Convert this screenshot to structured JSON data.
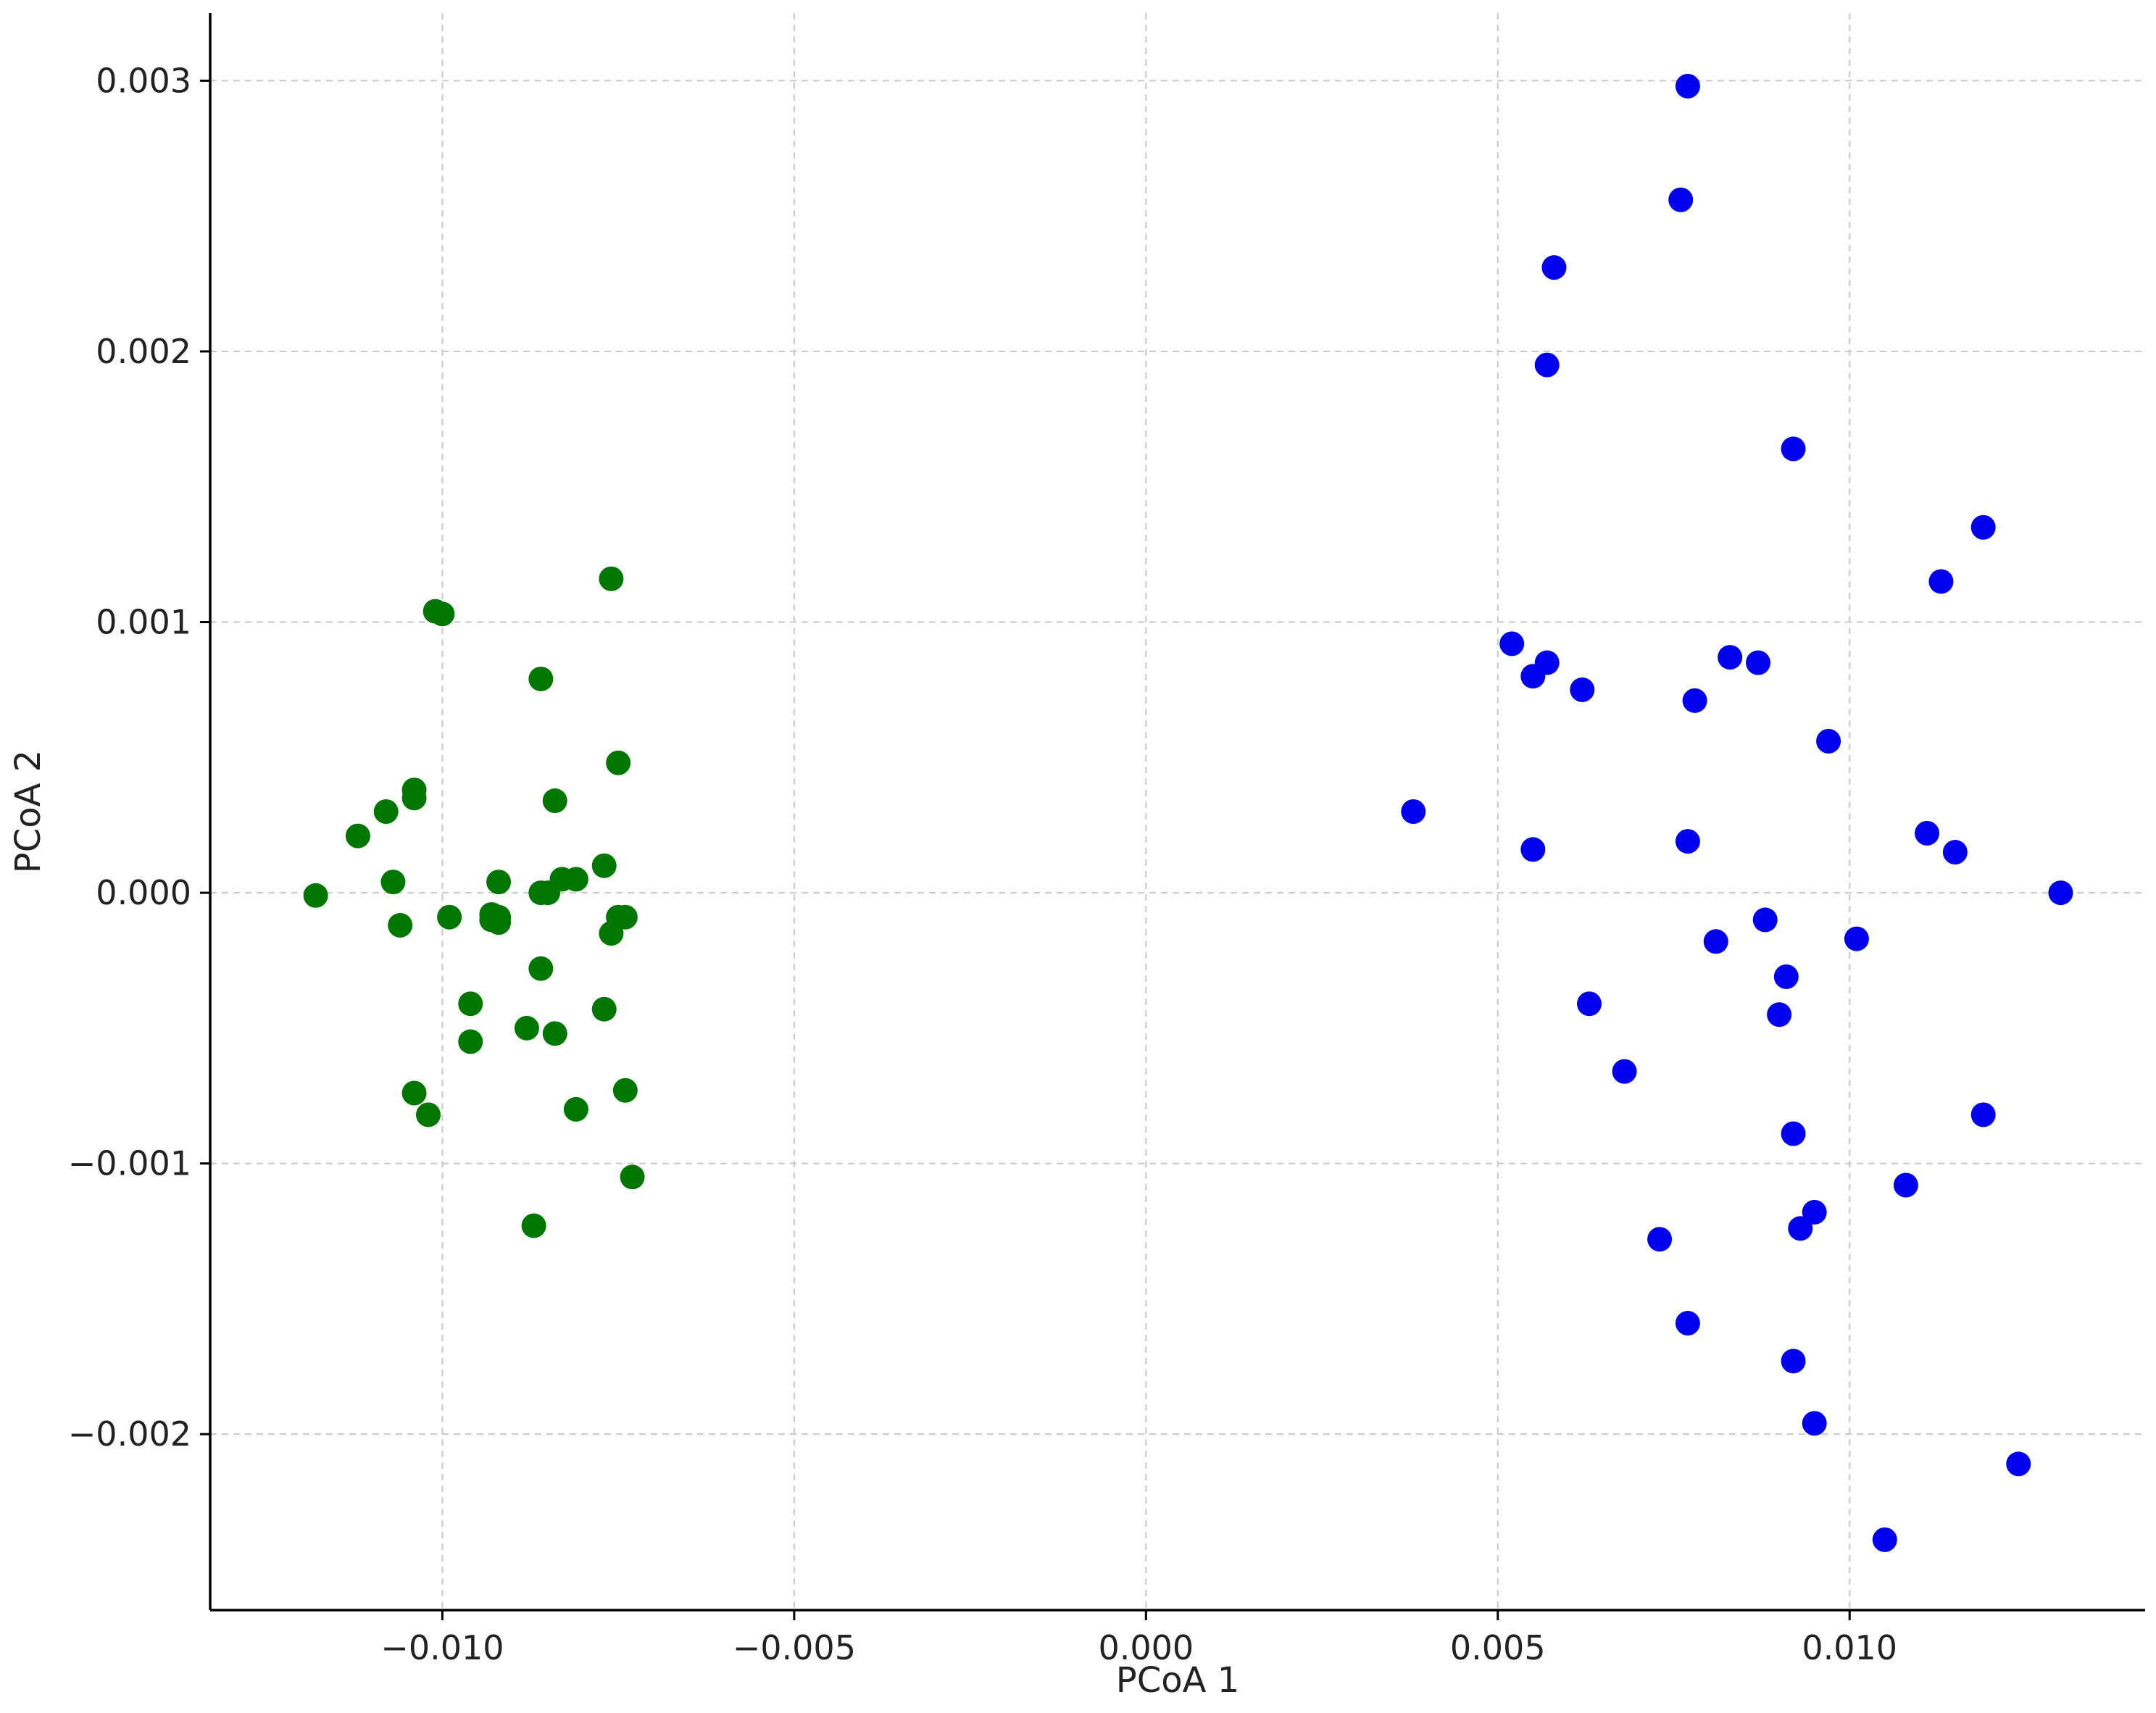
{
  "chart_data": {
    "type": "scatter",
    "title": "",
    "xlabel": "PCoA 1",
    "ylabel": "PCoA 2",
    "xlim": [
      -0.0133,
      0.0142
    ],
    "ylim": [
      -0.00265,
      0.00325
    ],
    "grid": true,
    "legend": "none",
    "x_ticks": [
      {
        "value": -0.01,
        "label": "−0.010"
      },
      {
        "value": -0.005,
        "label": "−0.005"
      },
      {
        "value": 0.0,
        "label": "0.000"
      },
      {
        "value": 0.005,
        "label": "0.005"
      },
      {
        "value": 0.01,
        "label": "0.010"
      }
    ],
    "y_ticks": [
      {
        "value": -0.002,
        "label": "−0.002"
      },
      {
        "value": -0.001,
        "label": "−0.001"
      },
      {
        "value": 0.0,
        "label": "0.000"
      },
      {
        "value": 0.001,
        "label": "0.001"
      },
      {
        "value": 0.002,
        "label": "0.002"
      },
      {
        "value": 0.003,
        "label": "0.003"
      }
    ],
    "series": [
      {
        "color": "#007700",
        "x": [
          -0.0118,
          -0.0112,
          -0.0108,
          -0.0107,
          -0.0106,
          -0.0104,
          -0.0104,
          -0.0104,
          -0.0102,
          -0.0101,
          -0.01,
          -0.0099,
          -0.0096,
          -0.0096,
          -0.0093,
          -0.0093,
          -0.0092,
          -0.0092,
          -0.0092,
          -0.0088,
          -0.0087,
          -0.0086,
          -0.0086,
          -0.0086,
          -0.0085,
          -0.0084,
          -0.0084,
          -0.0083,
          -0.0081,
          -0.0081,
          -0.0077,
          -0.0077,
          -0.0076,
          -0.0076,
          -0.0075,
          -0.0075,
          -0.0074,
          -0.0074,
          -0.0073
        ],
        "y": [
          -1e-05,
          0.00021,
          0.0003,
          4e-05,
          -0.00012,
          0.00038,
          0.00035,
          -0.00074,
          -0.00082,
          0.00104,
          0.00103,
          -9e-05,
          -0.00041,
          -0.00055,
          -8e-05,
          -0.0001,
          4e-05,
          -9e-05,
          -0.00011,
          -0.0005,
          -0.00123,
          0.00079,
          -0.00028,
          0.0,
          0.0,
          0.00034,
          -0.00052,
          5e-05,
          -0.0008,
          5e-05,
          -0.00043,
          0.0001,
          0.00116,
          -0.00015,
          0.00048,
          -9e-05,
          -0.00073,
          -9e-05,
          -0.00105
        ]
      },
      {
        "color": "#0000ee",
        "x": [
          0.0038,
          0.0052,
          0.0055,
          0.0055,
          0.0057,
          0.0057,
          0.0058,
          0.0062,
          0.0063,
          0.0068,
          0.0073,
          0.0076,
          0.0077,
          0.0077,
          0.0077,
          0.0078,
          0.0081,
          0.0083,
          0.0087,
          0.0088,
          0.009,
          0.0091,
          0.0092,
          0.0092,
          0.0092,
          0.0093,
          0.0095,
          0.0095,
          0.0097,
          0.0101,
          0.0105,
          0.0108,
          0.0111,
          0.0113,
          0.0115,
          0.0119,
          0.0119,
          0.0124,
          0.013
        ],
        "y": [
          0.0003,
          0.00092,
          0.0008,
          0.00016,
          0.00085,
          0.00195,
          0.00231,
          0.00075,
          -0.00041,
          -0.00066,
          -0.00128,
          0.00256,
          0.00298,
          0.00019,
          -0.00159,
          0.00071,
          -0.00018,
          0.00087,
          0.00085,
          -0.0001,
          -0.00045,
          -0.00031,
          -0.00089,
          -0.00173,
          0.00164,
          -0.00124,
          -0.00118,
          -0.00196,
          0.00056,
          -0.00017,
          -0.00239,
          -0.00108,
          0.00022,
          0.00115,
          0.00015,
          0.00135,
          -0.00082,
          -0.00211,
          0.0
        ]
      }
    ]
  }
}
